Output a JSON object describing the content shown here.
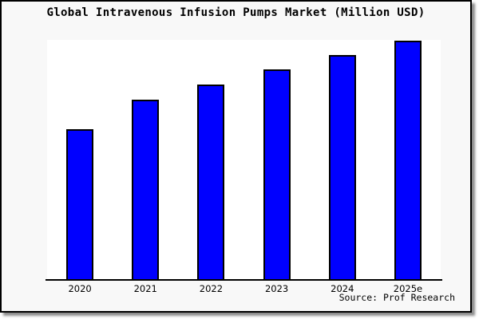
{
  "card": {
    "title": "Global Intravenous Infusion Pumps Market (Million USD)",
    "source_note": "Source: Prof Research"
  },
  "colors": {
    "bar_fill": "#0000ff",
    "bar_border": "#000000",
    "card_bg": "#f8f8f8",
    "plot_bg": "#ffffff",
    "axis": "#000000"
  },
  "chart_data": {
    "type": "bar",
    "title": "Global Intravenous Infusion Pumps Market (Million USD)",
    "categories": [
      "2020",
      "2021",
      "2022",
      "2023",
      "2024",
      "2025e"
    ],
    "values": [
      62.7,
      75.0,
      81.3,
      87.7,
      93.7,
      99.7
    ],
    "value_note": "y-axis has no tick labels in the image; values are estimated bar heights as percent of plot height (2025e = tallest)",
    "xlabel": "",
    "ylabel": "",
    "ylim": [
      0,
      100
    ],
    "grid": false,
    "legend": false,
    "bar_color": "#0000ff",
    "bar_border_color": "#000000",
    "source": "Source: Prof Research"
  }
}
